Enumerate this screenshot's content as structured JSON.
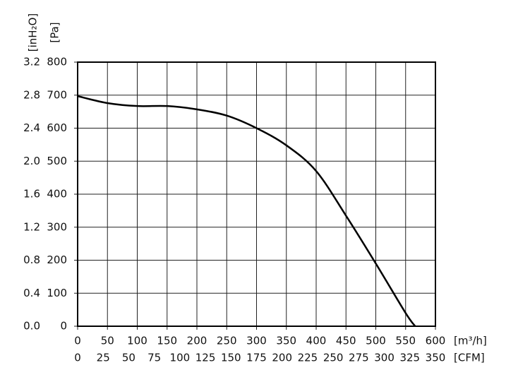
{
  "chart_data": {
    "type": "line",
    "x_label": "[m³/h]",
    "x2_label": "[CFM]",
    "y_label": "[Pa]",
    "y2_label": "[inH₂O]",
    "x": [
      0,
      50,
      100,
      150,
      200,
      250,
      300,
      350,
      400,
      450,
      500,
      550,
      566
    ],
    "series": [
      {
        "color": "#000000",
        "values": [
          697,
          676,
          667,
          667,
          657,
          638,
          600,
          548,
          470,
          335,
          190,
          40,
          0
        ]
      }
    ],
    "xlim": [
      0,
      600
    ],
    "xticks": [
      0,
      50,
      100,
      150,
      200,
      250,
      300,
      350,
      400,
      450,
      500,
      550,
      600
    ],
    "x2lim": [
      0,
      350
    ],
    "x2ticks": [
      0,
      25,
      50,
      75,
      100,
      125,
      150,
      175,
      200,
      225,
      250,
      275,
      300,
      325,
      350
    ],
    "ylim": [
      0,
      800
    ],
    "yticks": [
      0,
      100,
      200,
      300,
      400,
      500,
      600,
      700,
      800
    ],
    "y2lim": [
      0,
      3.2
    ],
    "y2ticks": [
      {
        "value": 0,
        "label": "0.0"
      },
      0.4,
      0.8,
      1.2,
      1.6,
      {
        "value": 2,
        "label": "2.0"
      },
      2.4,
      2.8,
      3.2
    ],
    "grid": true
  }
}
